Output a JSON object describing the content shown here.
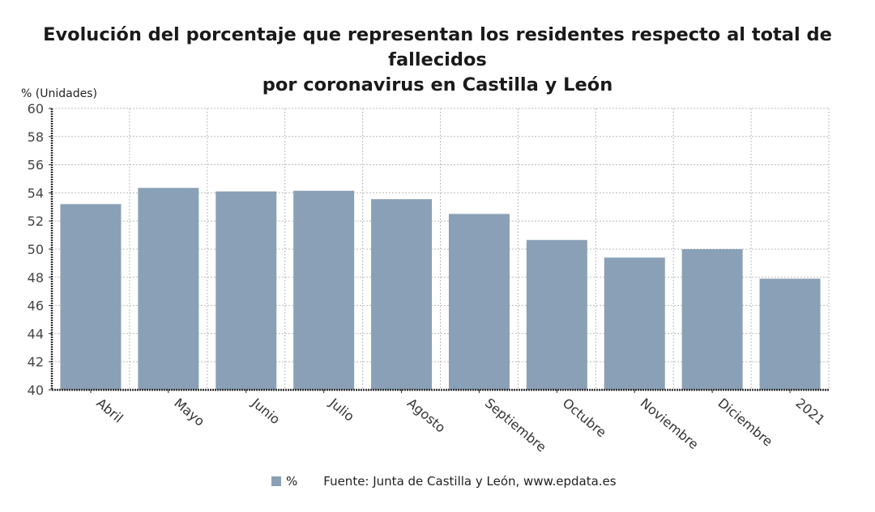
{
  "title_line1": "Evolución del porcentaje que representan los residentes respecto al total de fallecidos",
  "title_line2": "por coronavirus en Castilla y León",
  "legend": {
    "label": "%",
    "source": "Fuente: Junta de Castilla y León, www.epdata.es"
  },
  "colors": {
    "bar": "#8aa0b6",
    "grid": "#bbbbbb",
    "axis": "#333333"
  },
  "chart_data": {
    "type": "bar",
    "ylabel": "% (Unidades)",
    "ylim": [
      40,
      60
    ],
    "yticks": [
      40,
      42,
      44,
      46,
      48,
      50,
      52,
      54,
      56,
      58,
      60
    ],
    "grid": true,
    "legend_position": "bottom",
    "categories": [
      "Abril",
      "Mayo",
      "Junio",
      "Julio",
      "Agosto",
      "Septiembre",
      "Octubre",
      "Noviembre",
      "Diciembre",
      "2021"
    ],
    "series": [
      {
        "name": "%",
        "values": [
          53.2,
          54.35,
          54.1,
          54.15,
          53.55,
          52.5,
          50.65,
          49.4,
          50.0,
          47.9
        ]
      }
    ]
  }
}
